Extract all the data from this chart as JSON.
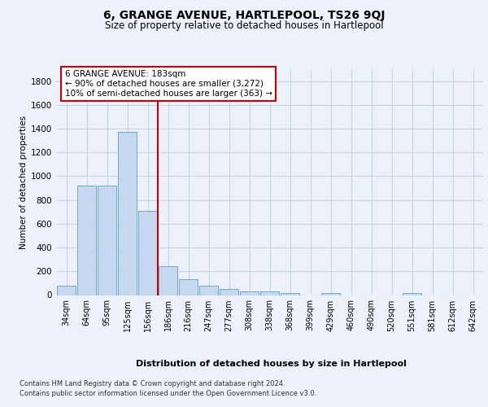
{
  "title": "6, GRANGE AVENUE, HARTLEPOOL, TS26 9QJ",
  "subtitle": "Size of property relative to detached houses in Hartlepool",
  "xlabel": "Distribution of detached houses by size in Hartlepool",
  "ylabel": "Number of detached properties",
  "footer1": "Contains HM Land Registry data © Crown copyright and database right 2024.",
  "footer2": "Contains public sector information licensed under the Open Government Licence v3.0.",
  "categories": [
    "34sqm",
    "64sqm",
    "95sqm",
    "125sqm",
    "156sqm",
    "186sqm",
    "216sqm",
    "247sqm",
    "277sqm",
    "308sqm",
    "338sqm",
    "368sqm",
    "399sqm",
    "429sqm",
    "460sqm",
    "490sqm",
    "520sqm",
    "551sqm",
    "581sqm",
    "612sqm",
    "642sqm"
  ],
  "values": [
    80,
    920,
    920,
    1370,
    710,
    245,
    135,
    80,
    50,
    30,
    30,
    20,
    0,
    20,
    0,
    0,
    0,
    20,
    0,
    0,
    0
  ],
  "bar_color": "#c5d8f0",
  "bar_edge_color": "#6aaad4",
  "grid_color": "#c8d4e8",
  "vline_color": "#cc0000",
  "vline_pos": 5,
  "annotation_text": "6 GRANGE AVENUE: 183sqm\n← 90% of detached houses are smaller (3,272)\n10% of semi-detached houses are larger (363) →",
  "annotation_box_color": "#cc0000",
  "ylim": [
    0,
    1900
  ],
  "yticks": [
    0,
    200,
    400,
    600,
    800,
    1000,
    1200,
    1400,
    1600,
    1800
  ],
  "bg_color": "#edf1fb",
  "plot_bg_color": "#edf1fb"
}
